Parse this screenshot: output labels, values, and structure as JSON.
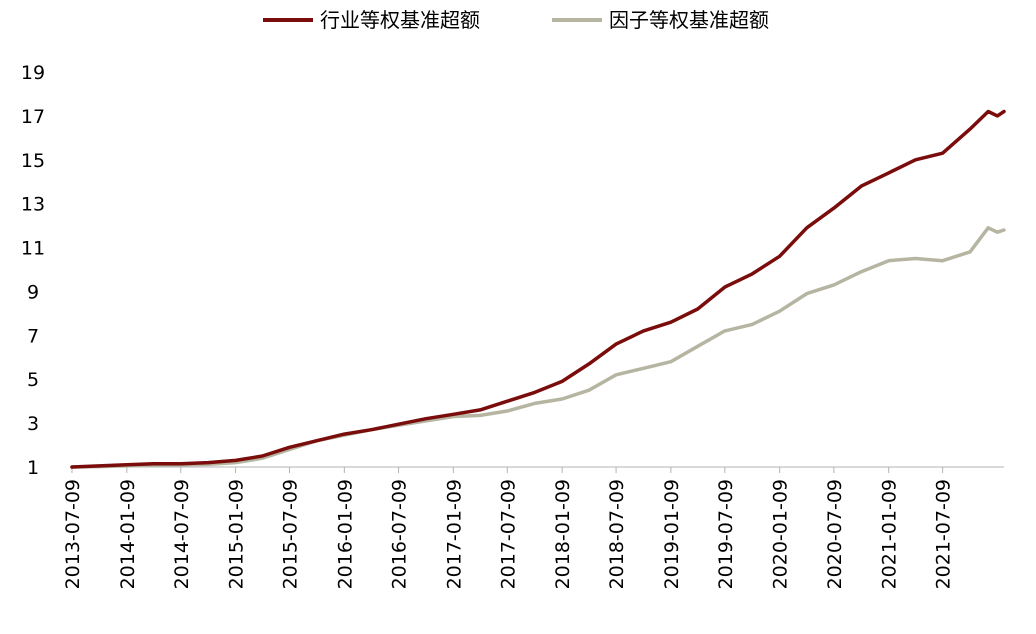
{
  "chart_data": {
    "type": "line",
    "title": "",
    "xlabel": "",
    "ylabel": "",
    "ylim": [
      1,
      19
    ],
    "yticks": [
      1,
      3,
      5,
      7,
      9,
      11,
      13,
      15,
      17,
      19
    ],
    "xticks": [
      "2013-07-09",
      "2014-01-09",
      "2014-07-09",
      "2015-01-09",
      "2015-07-09",
      "2016-01-09",
      "2016-07-09",
      "2017-01-09",
      "2017-07-09",
      "2018-01-09",
      "2018-07-09",
      "2019-01-09",
      "2019-07-09",
      "2020-01-09",
      "2020-07-09",
      "2021-01-09",
      "2021-07-09"
    ],
    "xlim": [
      "2013-07-09",
      "2022-01-31"
    ],
    "grid": false,
    "legend": "top-center",
    "colors": {
      "industry": "#7a0c0c",
      "factor": "#b6b5a1"
    },
    "x": [
      "2013-07-09",
      "2013-10-09",
      "2014-01-09",
      "2014-04-09",
      "2014-07-09",
      "2014-10-09",
      "2015-01-09",
      "2015-04-09",
      "2015-07-09",
      "2015-10-09",
      "2016-01-09",
      "2016-04-09",
      "2016-07-09",
      "2016-10-09",
      "2017-01-09",
      "2017-04-09",
      "2017-07-09",
      "2017-10-09",
      "2018-01-09",
      "2018-04-09",
      "2018-07-09",
      "2018-10-09",
      "2019-01-09",
      "2019-04-09",
      "2019-07-09",
      "2019-10-09",
      "2020-01-09",
      "2020-04-09",
      "2020-07-09",
      "2020-10-09",
      "2021-01-09",
      "2021-04-09",
      "2021-07-09",
      "2021-10-09",
      "2021-12-09",
      "2022-01-09",
      "2022-01-31"
    ],
    "series": [
      {
        "name": "行业等权基准超额",
        "values": [
          1.0,
          1.05,
          1.1,
          1.15,
          1.15,
          1.2,
          1.3,
          1.5,
          1.9,
          2.2,
          2.5,
          2.7,
          2.95,
          3.2,
          3.4,
          3.6,
          4.0,
          4.4,
          4.9,
          5.7,
          6.6,
          7.2,
          7.6,
          8.2,
          9.2,
          9.8,
          10.6,
          11.9,
          12.8,
          13.8,
          14.4,
          15.0,
          15.3,
          16.4,
          17.2,
          17.0,
          17.2
        ]
      },
      {
        "name": "因子等权基准超额",
        "values": [
          1.0,
          1.02,
          1.05,
          1.1,
          1.1,
          1.12,
          1.2,
          1.4,
          1.8,
          2.2,
          2.45,
          2.7,
          2.9,
          3.1,
          3.3,
          3.35,
          3.55,
          3.9,
          4.1,
          4.5,
          5.2,
          5.5,
          5.8,
          6.5,
          7.2,
          7.5,
          8.1,
          8.9,
          9.3,
          9.9,
          10.4,
          10.5,
          10.4,
          10.8,
          11.9,
          11.7,
          11.8
        ]
      }
    ]
  }
}
